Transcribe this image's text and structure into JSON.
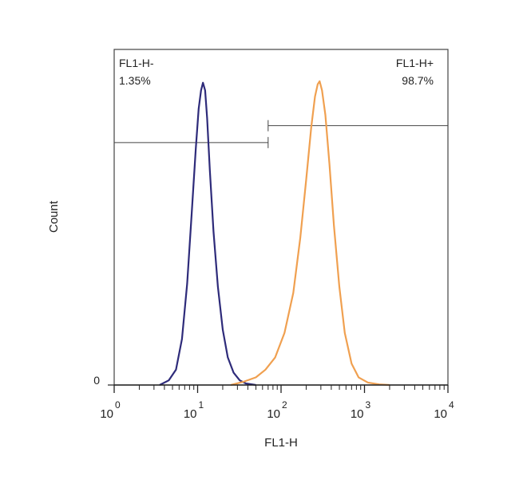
{
  "chart_data": {
    "type": "line",
    "title": "",
    "xlabel": "FL1-H",
    "ylabel": "Count",
    "xscale": "log",
    "xlim": [
      1,
      10000
    ],
    "ylim": [
      0,
      1
    ],
    "x_ticks": [
      {
        "base": "10",
        "exp": "0",
        "value": 1
      },
      {
        "base": "10",
        "exp": "1",
        "value": 10
      },
      {
        "base": "10",
        "exp": "2",
        "value": 100
      },
      {
        "base": "10",
        "exp": "3",
        "value": 1000
      },
      {
        "base": "10",
        "exp": "4",
        "value": 10000
      }
    ],
    "y_ticks": [
      {
        "label": "0",
        "value": 0
      }
    ],
    "gates": [
      {
        "label": "FL1-H-",
        "percent": "1.35%",
        "x_range": [
          1,
          70
        ],
        "y_level": 0.79
      },
      {
        "label": "FL1-H+",
        "percent": "98.7%",
        "x_range": [
          70,
          10000
        ],
        "y_level": 0.845
      }
    ],
    "series": [
      {
        "color": "#2e2b7a",
        "points": [
          [
            3.5,
            0
          ],
          [
            4.5,
            0.015
          ],
          [
            5.5,
            0.05
          ],
          [
            6.5,
            0.15
          ],
          [
            7.5,
            0.33
          ],
          [
            8.5,
            0.56
          ],
          [
            9.5,
            0.77
          ],
          [
            10.3,
            0.9
          ],
          [
            11.0,
            0.96
          ],
          [
            11.6,
            0.985
          ],
          [
            12.3,
            0.96
          ],
          [
            13.0,
            0.87
          ],
          [
            14.0,
            0.7
          ],
          [
            15.5,
            0.5
          ],
          [
            17.5,
            0.32
          ],
          [
            20,
            0.18
          ],
          [
            23,
            0.09
          ],
          [
            27,
            0.04
          ],
          [
            32,
            0.015
          ],
          [
            38,
            0.005
          ],
          [
            50,
            0
          ]
        ]
      },
      {
        "color": "#f0a050",
        "points": [
          [
            25,
            0
          ],
          [
            35,
            0.01
          ],
          [
            50,
            0.025
          ],
          [
            65,
            0.05
          ],
          [
            85,
            0.09
          ],
          [
            110,
            0.17
          ],
          [
            140,
            0.3
          ],
          [
            170,
            0.48
          ],
          [
            200,
            0.67
          ],
          [
            230,
            0.84
          ],
          [
            255,
            0.94
          ],
          [
            275,
            0.98
          ],
          [
            290,
            0.99
          ],
          [
            310,
            0.96
          ],
          [
            340,
            0.88
          ],
          [
            380,
            0.72
          ],
          [
            430,
            0.52
          ],
          [
            500,
            0.32
          ],
          [
            580,
            0.17
          ],
          [
            700,
            0.07
          ],
          [
            850,
            0.025
          ],
          [
            1100,
            0.008
          ],
          [
            1500,
            0.002
          ],
          [
            2000,
            0
          ]
        ]
      }
    ]
  }
}
